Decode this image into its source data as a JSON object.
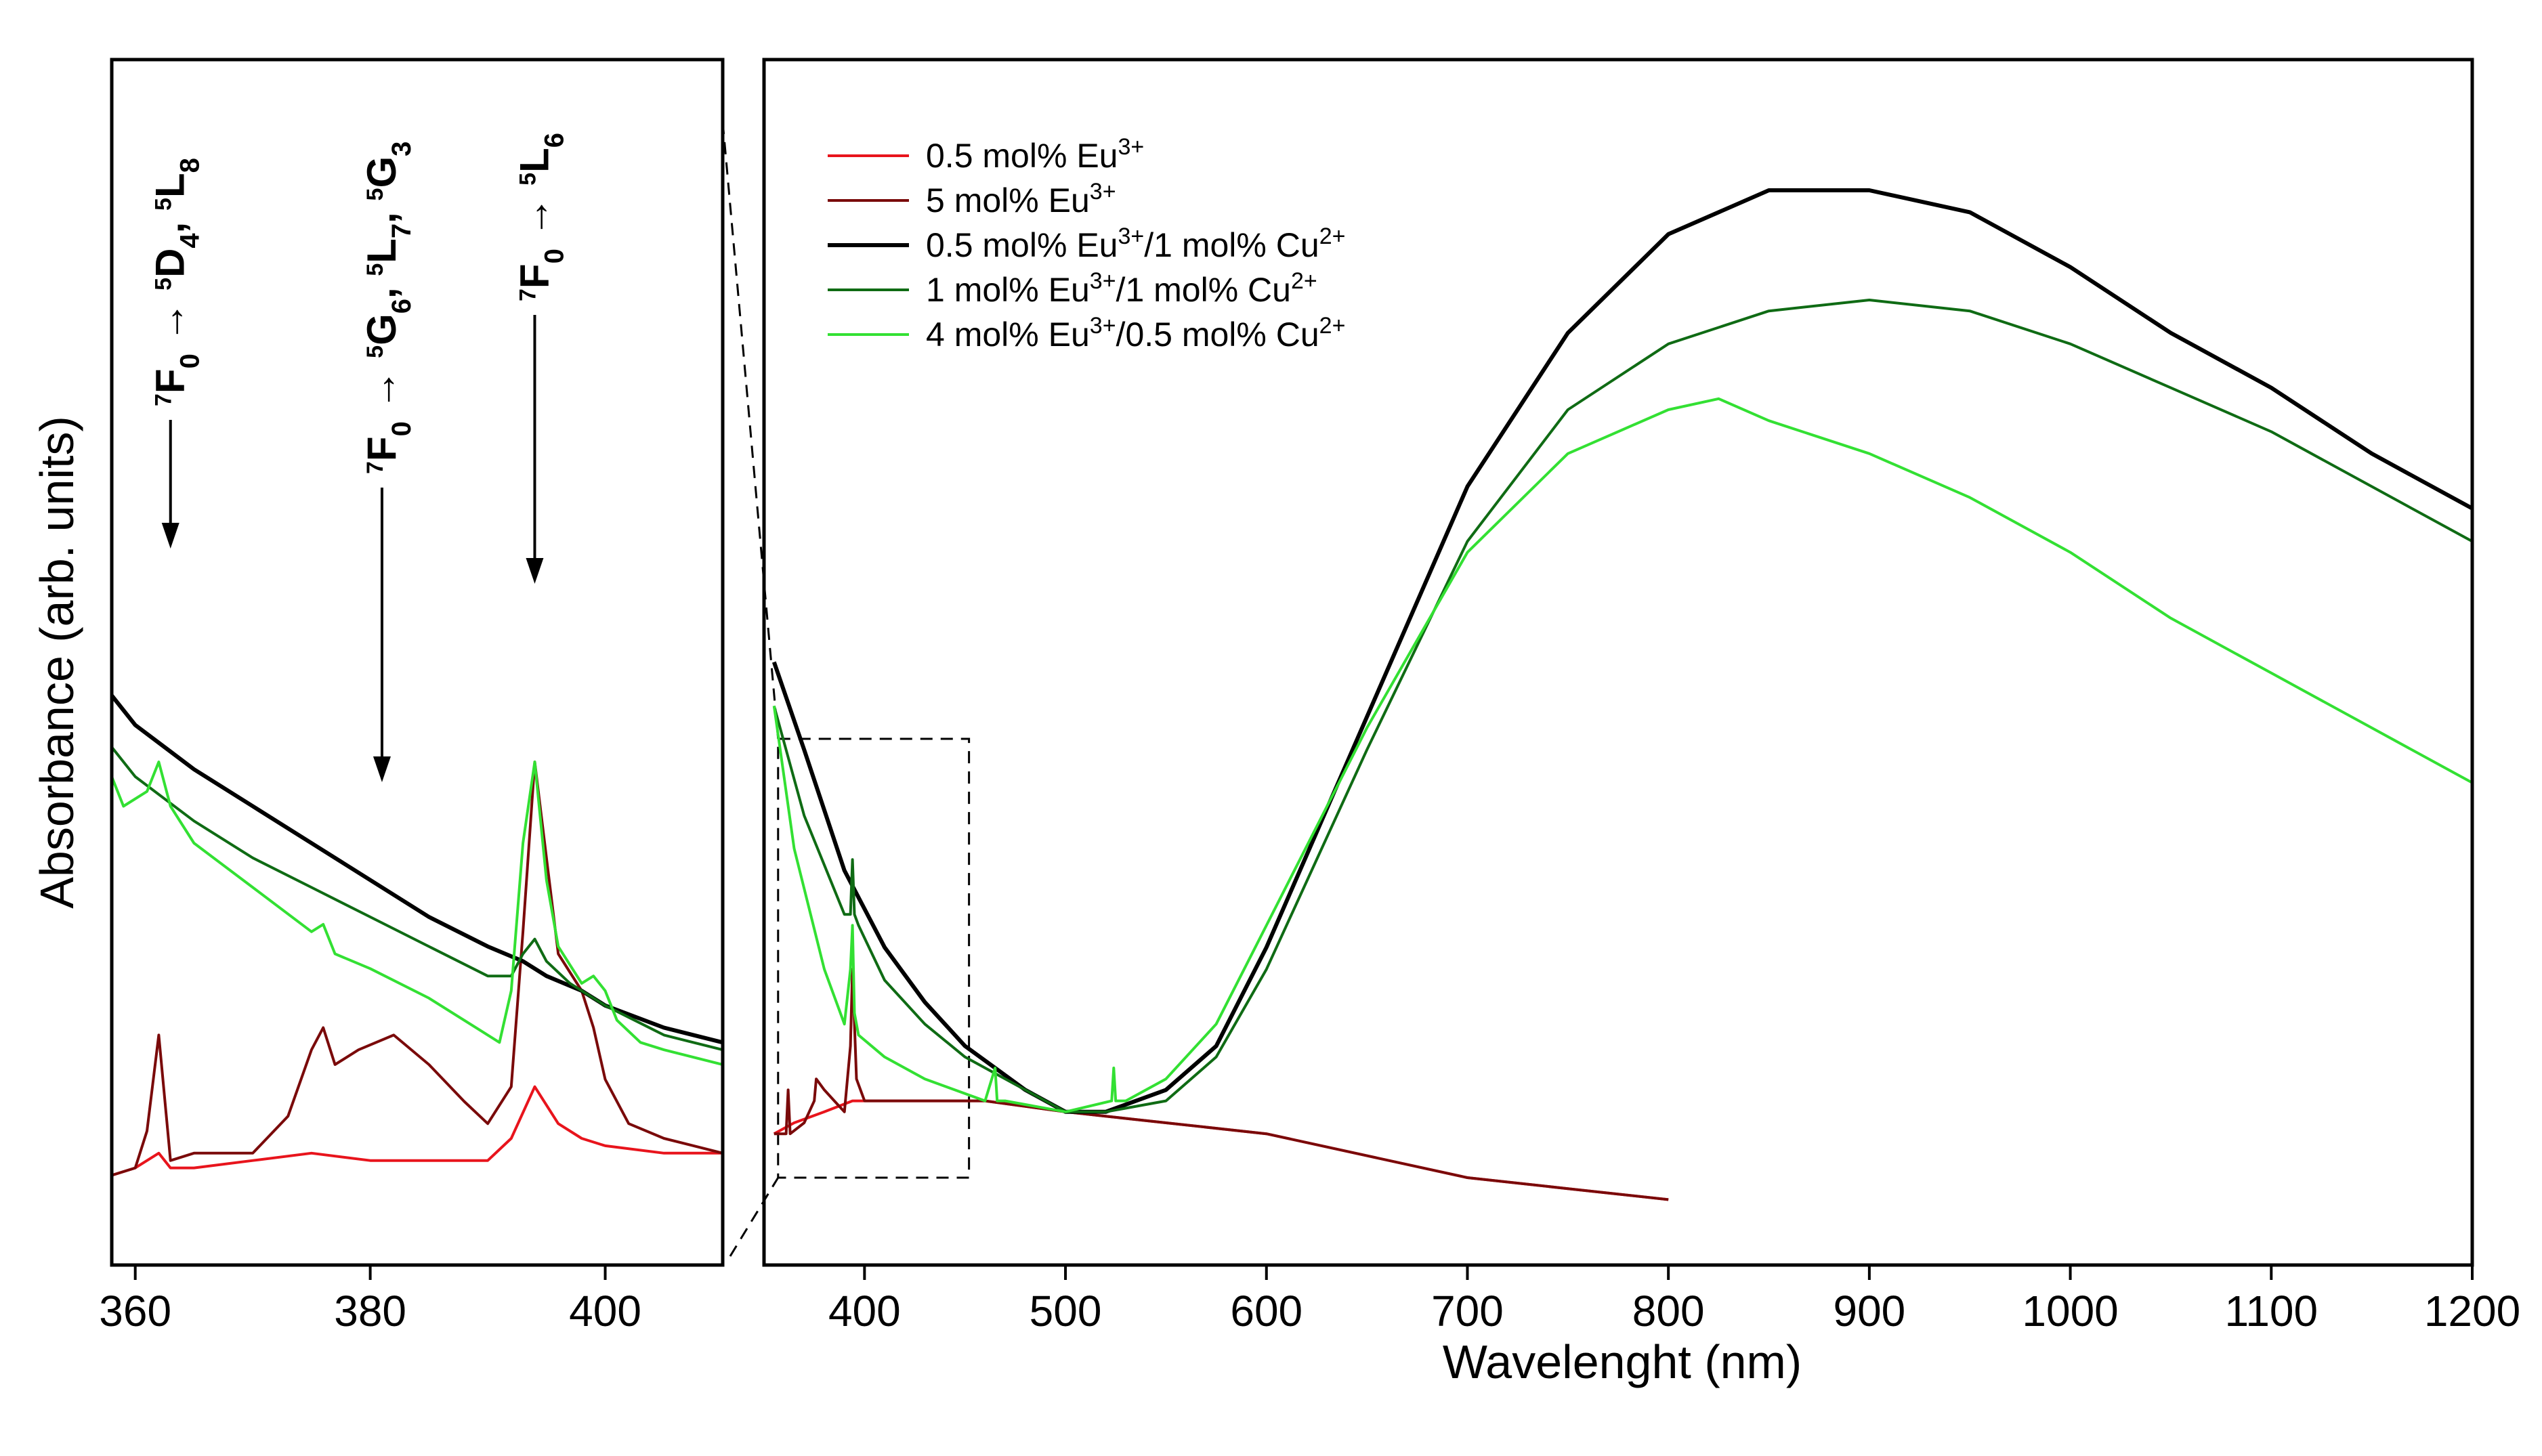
{
  "chart_data": [
    {
      "type": "line",
      "name": "inset-zoom",
      "xlabel": "",
      "ylabel": "Absorbance (arb. units)",
      "xlim": [
        358,
        410
      ],
      "ylim": [
        0,
        1
      ],
      "xticks": [
        360,
        380,
        400
      ],
      "yticks_shown": false,
      "series": [
        {
          "name": "0.5 mol% Eu3+",
          "color": "#e8141c",
          "x": [
            358,
            360,
            362,
            363,
            365,
            370,
            375,
            380,
            385,
            390,
            392,
            394,
            396,
            398,
            400,
            405,
            410
          ],
          "y": [
            0.05,
            0.06,
            0.08,
            0.06,
            0.06,
            0.07,
            0.08,
            0.07,
            0.07,
            0.07,
            0.1,
            0.17,
            0.12,
            0.1,
            0.09,
            0.08,
            0.08
          ]
        },
        {
          "name": "5 mol% Eu3+",
          "color": "#7a0a0a",
          "x": [
            358,
            360,
            361,
            362,
            363,
            365,
            370,
            373,
            375,
            376,
            377,
            379,
            382,
            385,
            388,
            390,
            392,
            393,
            394,
            395,
            396,
            398,
            399,
            400,
            402,
            405,
            410
          ],
          "y": [
            0.05,
            0.06,
            0.11,
            0.24,
            0.07,
            0.08,
            0.08,
            0.13,
            0.22,
            0.25,
            0.2,
            0.22,
            0.24,
            0.2,
            0.15,
            0.12,
            0.17,
            0.38,
            0.61,
            0.48,
            0.35,
            0.3,
            0.25,
            0.18,
            0.12,
            0.1,
            0.08
          ]
        },
        {
          "name": "0.5 mol% Eu3+/1 mol% Cu2+",
          "color": "#000000",
          "x": [
            358,
            360,
            365,
            370,
            375,
            380,
            385,
            390,
            393,
            395,
            398,
            400,
            405,
            410
          ],
          "y": [
            0.7,
            0.66,
            0.6,
            0.55,
            0.5,
            0.45,
            0.4,
            0.36,
            0.34,
            0.32,
            0.3,
            0.28,
            0.25,
            0.23
          ]
        },
        {
          "name": "1 mol% Eu3+/1 mol% Cu2+",
          "color": "#0f6b14",
          "x": [
            358,
            360,
            365,
            370,
            375,
            380,
            385,
            390,
            392,
            393,
            394,
            395,
            397,
            400,
            405,
            410
          ],
          "y": [
            0.63,
            0.59,
            0.53,
            0.48,
            0.44,
            0.4,
            0.36,
            0.32,
            0.32,
            0.35,
            0.37,
            0.34,
            0.31,
            0.28,
            0.24,
            0.22
          ]
        },
        {
          "name": "4 mol% Eu3+/0.5 mol% Cu2+",
          "color": "#33e033",
          "x": [
            358,
            359,
            361,
            362,
            363,
            365,
            370,
            375,
            376,
            377,
            380,
            385,
            390,
            391,
            392,
            393,
            394,
            395,
            396,
            398,
            399,
            400,
            401,
            403,
            405,
            410
          ],
          "y": [
            0.59,
            0.55,
            0.57,
            0.61,
            0.55,
            0.5,
            0.44,
            0.38,
            0.39,
            0.35,
            0.33,
            0.29,
            0.24,
            0.23,
            0.3,
            0.5,
            0.61,
            0.45,
            0.36,
            0.31,
            0.32,
            0.3,
            0.26,
            0.23,
            0.22,
            0.2
          ]
        }
      ],
      "annotations": [
        {
          "main": "⁷F₀ → ⁵D₄, ⁵L₈",
          "x": 363,
          "parts": [
            [
              "7",
              "sup"
            ],
            [
              "F",
              "n"
            ],
            [
              "0",
              "sub"
            ],
            [
              " → ",
              "n"
            ],
            [
              "5",
              "sup"
            ],
            [
              "D",
              "n"
            ],
            [
              "4",
              "sub"
            ],
            [
              ", ",
              "n"
            ],
            [
              "5",
              "sup"
            ],
            [
              "L",
              "n"
            ],
            [
              "8",
              "sub"
            ]
          ]
        },
        {
          "main": "⁷F₀ → ⁵G₆, ⁵L₇, ⁵G₃",
          "x": 381,
          "parts": [
            [
              "7",
              "sup"
            ],
            [
              "F",
              "n"
            ],
            [
              "0",
              "sub"
            ],
            [
              " → ",
              "n"
            ],
            [
              "5",
              "sup"
            ],
            [
              "G",
              "n"
            ],
            [
              "6",
              "sub"
            ],
            [
              ", ",
              "n"
            ],
            [
              "5",
              "sup"
            ],
            [
              "L",
              "n"
            ],
            [
              "7",
              "sub"
            ],
            [
              ", ",
              "n"
            ],
            [
              "5",
              "sup"
            ],
            [
              "G",
              "n"
            ],
            [
              "3",
              "sub"
            ]
          ]
        },
        {
          "main": "⁷F₀ → ⁵L₆",
          "x": 394,
          "parts": [
            [
              "7",
              "sup"
            ],
            [
              "F",
              "n"
            ],
            [
              "0",
              "sub"
            ],
            [
              " → ",
              "n"
            ],
            [
              "5",
              "sup"
            ],
            [
              "L",
              "n"
            ],
            [
              "6",
              "sub"
            ]
          ]
        }
      ]
    },
    {
      "type": "line",
      "name": "main",
      "xlabel": "Wavelenght (nm)",
      "ylabel": "Absorbance (arb. units)",
      "xlim": [
        350,
        1200
      ],
      "ylim": [
        0,
        1
      ],
      "xticks": [
        400,
        500,
        600,
        700,
        800,
        900,
        1000,
        1100,
        1200
      ],
      "yticks_shown": false,
      "series": [
        {
          "name": "0.5 mol% Eu3+",
          "color": "#e8141c",
          "x": [
            355,
            365,
            380,
            394,
            410,
            430,
            460,
            500,
            550,
            600,
            650,
            700,
            750,
            800
          ],
          "y": [
            0.09,
            0.1,
            0.11,
            0.12,
            0.12,
            0.12,
            0.12,
            0.11,
            0.1,
            0.09,
            0.07,
            0.05,
            0.04,
            0.03
          ]
        },
        {
          "name": "5 mol% Eu3+",
          "color": "#7a0a0a",
          "x": [
            355,
            361,
            362,
            363,
            370,
            375,
            376,
            380,
            385,
            390,
            393,
            394,
            396,
            400,
            410,
            430,
            460,
            500,
            550,
            600,
            650,
            700,
            750,
            800
          ],
          "y": [
            0.09,
            0.09,
            0.13,
            0.09,
            0.1,
            0.12,
            0.14,
            0.13,
            0.12,
            0.11,
            0.17,
            0.24,
            0.14,
            0.12,
            0.12,
            0.12,
            0.12,
            0.11,
            0.1,
            0.09,
            0.07,
            0.05,
            0.04,
            0.03
          ]
        },
        {
          "name": "0.5 mol% Eu3+/1 mol% Cu2+",
          "color": "#000000",
          "x": [
            355,
            370,
            390,
            410,
            430,
            450,
            480,
            500,
            520,
            550,
            575,
            600,
            650,
            700,
            750,
            800,
            850,
            900,
            950,
            1000,
            1050,
            1100,
            1150,
            1200
          ],
          "y": [
            0.52,
            0.44,
            0.33,
            0.26,
            0.21,
            0.17,
            0.13,
            0.11,
            0.11,
            0.13,
            0.17,
            0.26,
            0.47,
            0.68,
            0.82,
            0.91,
            0.95,
            0.95,
            0.93,
            0.88,
            0.82,
            0.77,
            0.71,
            0.66
          ]
        },
        {
          "name": "1 mol% Eu3+/1 mol% Cu2+",
          "color": "#0f6b14",
          "x": [
            355,
            370,
            390,
            393,
            394,
            395,
            397,
            410,
            430,
            450,
            480,
            500,
            520,
            550,
            575,
            600,
            650,
            700,
            750,
            800,
            850,
            900,
            950,
            1000,
            1050,
            1100,
            1150,
            1200
          ],
          "y": [
            0.48,
            0.38,
            0.29,
            0.29,
            0.34,
            0.29,
            0.28,
            0.23,
            0.19,
            0.16,
            0.13,
            0.11,
            0.11,
            0.12,
            0.16,
            0.24,
            0.44,
            0.63,
            0.75,
            0.81,
            0.84,
            0.85,
            0.84,
            0.81,
            0.77,
            0.73,
            0.68,
            0.63
          ]
        },
        {
          "name": "4 mol% Eu3+/0.5 mol% Cu2+",
          "color": "#33e033",
          "x": [
            355,
            365,
            380,
            390,
            393,
            394,
            395,
            397,
            410,
            430,
            460,
            465,
            466,
            467,
            470,
            500,
            523,
            524,
            525,
            530,
            550,
            575,
            600,
            650,
            700,
            750,
            800,
            825,
            850,
            900,
            950,
            1000,
            1050,
            1100,
            1150,
            1200
          ],
          "y": [
            0.48,
            0.35,
            0.24,
            0.19,
            0.24,
            0.28,
            0.2,
            0.18,
            0.16,
            0.14,
            0.12,
            0.15,
            0.12,
            0.12,
            0.12,
            0.11,
            0.12,
            0.15,
            0.12,
            0.12,
            0.14,
            0.19,
            0.28,
            0.46,
            0.62,
            0.71,
            0.75,
            0.76,
            0.74,
            0.71,
            0.67,
            0.62,
            0.56,
            0.51,
            0.46,
            0.41
          ]
        }
      ],
      "legend": {
        "placement": "top-left",
        "entries": [
          {
            "color": "#e8141c",
            "parts": [
              [
                "0.5 mol% Eu",
                "n"
              ],
              [
                "3+",
                "sup"
              ]
            ]
          },
          {
            "color": "#7a0a0a",
            "parts": [
              [
                "5 mol% Eu",
                "n"
              ],
              [
                "3+",
                "sup"
              ]
            ]
          },
          {
            "color": "#000000",
            "parts": [
              [
                "0.5 mol% Eu",
                "n"
              ],
              [
                "3+",
                "sup"
              ],
              [
                "/1 mol% Cu",
                "n"
              ],
              [
                "2+",
                "sup"
              ]
            ]
          },
          {
            "color": "#0f6b14",
            "parts": [
              [
                "1 mol% Eu",
                "n"
              ],
              [
                "3+",
                "sup"
              ],
              [
                "/1 mol% Cu",
                "n"
              ],
              [
                "2+",
                "sup"
              ]
            ]
          },
          {
            "color": "#33e033",
            "parts": [
              [
                "4 mol% Eu",
                "n"
              ],
              [
                "3+",
                "sup"
              ],
              [
                "/0.5 mol% Cu",
                "n"
              ],
              [
                "2+",
                "sup"
              ]
            ]
          }
        ]
      },
      "zoom_region": {
        "x": [
          357,
          452
        ],
        "y": [
          0.05,
          0.45
        ]
      }
    }
  ]
}
